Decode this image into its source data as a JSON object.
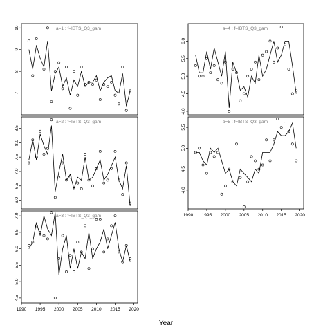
{
  "xlabel": "Year",
  "chart_data": [
    {
      "type": "scatter",
      "title": "a=1  :  f=IBTS_Q3_gam",
      "xlim": [
        1990,
        2021
      ],
      "ylim": [
        6.0,
        10.2
      ],
      "xticks": [
        1990,
        1995,
        2000,
        2005,
        2010,
        2015,
        2020
      ],
      "yticks": [
        7,
        8,
        9,
        10
      ],
      "observed": {
        "x": [
          1992,
          1993,
          1994,
          1995,
          1996,
          1997,
          1998,
          1999,
          2000,
          2001,
          2002,
          2003,
          2004,
          2005,
          2006,
          2007,
          2008,
          2009,
          2010,
          2011,
          2012,
          2013,
          2014,
          2015,
          2016,
          2017,
          2018,
          2019
        ],
        "y": [
          9.4,
          7.8,
          9.5,
          8.8,
          8.1,
          10.0,
          6.6,
          8.0,
          8.4,
          7.2,
          8.2,
          6.3,
          8.0,
          6.9,
          8.2,
          7.4,
          7.5,
          7.4,
          7.6,
          6.7,
          7.4,
          7.3,
          7.5,
          6.9,
          6.5,
          8.2,
          6.2,
          7.1
        ]
      },
      "fitted": {
        "x": [
          1992,
          1993,
          1994,
          1995,
          1996,
          1997,
          1998,
          1999,
          2000,
          2001,
          2002,
          2003,
          2004,
          2005,
          2006,
          2007,
          2008,
          2009,
          2010,
          2011,
          2012,
          2013,
          2014,
          2015,
          2016,
          2017,
          2018,
          2019
        ],
        "y": [
          9.0,
          8.1,
          9.2,
          8.6,
          8.2,
          9.4,
          7.1,
          7.9,
          8.2,
          7.3,
          7.7,
          6.9,
          7.6,
          7.3,
          8.0,
          7.3,
          7.5,
          7.5,
          7.8,
          7.1,
          7.5,
          7.7,
          7.8,
          7.1,
          7.0,
          7.9,
          6.4,
          7.1
        ]
      }
    },
    {
      "type": "scatter",
      "title": "a=2  :  f=IBTS_Q3_gam",
      "xlim": [
        1990,
        2021
      ],
      "ylim": [
        5.7,
        8.9
      ],
      "xticks": [
        1990,
        1995,
        2000,
        2005,
        2010,
        2015,
        2020
      ],
      "yticks": [
        6.0,
        6.5,
        7.0,
        7.5,
        8.0,
        8.5
      ],
      "observed": {
        "x": [
          1992,
          1993,
          1994,
          1995,
          1996,
          1997,
          1998,
          1999,
          2000,
          2001,
          2002,
          2003,
          2004,
          2005,
          2006,
          2007,
          2008,
          2009,
          2010,
          2011,
          2012,
          2013,
          2014,
          2015,
          2016,
          2017,
          2018,
          2019
        ],
        "y": [
          7.3,
          8.1,
          7.5,
          8.4,
          7.6,
          7.8,
          8.8,
          6.1,
          6.8,
          7.3,
          6.7,
          6.8,
          6.4,
          6.6,
          6.4,
          7.6,
          6.7,
          6.5,
          7.1,
          7.7,
          6.6,
          6.7,
          7.1,
          7.7,
          6.7,
          6.2,
          7.3,
          5.9
        ]
      },
      "fitted": {
        "x": [
          1992,
          1993,
          1994,
          1995,
          1996,
          1997,
          1998,
          1999,
          2000,
          2001,
          2002,
          2003,
          2004,
          2005,
          2006,
          2007,
          2008,
          2009,
          2010,
          2011,
          2012,
          2013,
          2014,
          2015,
          2016,
          2017,
          2018,
          2019
        ],
        "y": [
          7.4,
          8.1,
          7.4,
          8.3,
          7.9,
          7.6,
          8.6,
          6.3,
          7.0,
          7.6,
          6.7,
          6.9,
          6.4,
          6.8,
          6.7,
          7.5,
          6.7,
          6.8,
          7.1,
          7.4,
          6.7,
          6.9,
          7.2,
          7.5,
          6.7,
          6.4,
          7.2,
          5.8
        ]
      }
    },
    {
      "type": "scatter",
      "title": "a=3  :  f=IBTS_Q3_gam",
      "xlim": [
        1990,
        2021
      ],
      "ylim": [
        4.35,
        7.15
      ],
      "xticks": [
        1990,
        1995,
        2000,
        2005,
        2010,
        2015,
        2020
      ],
      "yticks": [
        4.5,
        5.0,
        5.5,
        6.0,
        6.5,
        7.0
      ],
      "observed": {
        "x": [
          1992,
          1993,
          1994,
          1995,
          1996,
          1997,
          1998,
          1999,
          2000,
          2001,
          2002,
          2003,
          2004,
          2005,
          2006,
          2007,
          2008,
          2009,
          2010,
          2011,
          2012,
          2013,
          2014,
          2015,
          2016,
          2017,
          2018,
          2019
        ],
        "y": [
          6.1,
          6.2,
          6.7,
          6.5,
          6.4,
          6.3,
          7.1,
          4.5,
          5.7,
          6.4,
          5.3,
          5.8,
          5.3,
          6.2,
          5.9,
          6.7,
          5.4,
          6.0,
          6.9,
          6.9,
          5.9,
          6.3,
          6.7,
          7.0,
          5.9,
          5.6,
          6.1,
          5.7
        ]
      },
      "fitted": {
        "x": [
          1992,
          1993,
          1994,
          1995,
          1996,
          1997,
          1998,
          1999,
          2000,
          2001,
          2002,
          2003,
          2004,
          2005,
          2006,
          2007,
          2008,
          2009,
          2010,
          2011,
          2012,
          2013,
          2014,
          2015,
          2016,
          2017,
          2018,
          2019
        ],
        "y": [
          6.0,
          6.2,
          6.8,
          6.4,
          7.0,
          6.6,
          6.4,
          7.1,
          5.2,
          6.0,
          6.4,
          5.4,
          6.0,
          5.4,
          5.9,
          5.7,
          6.5,
          5.7,
          6.0,
          6.2,
          6.6,
          6.0,
          6.4,
          6.8,
          6.0,
          5.6,
          6.1,
          5.6
        ]
      }
    },
    {
      "type": "scatter",
      "title": "a=4  :  f=IBTS_Q3_gam",
      "xlim": [
        1990,
        2021
      ],
      "ylim": [
        3.9,
        6.5
      ],
      "xticks": [
        1990,
        1995,
        2000,
        2005,
        2010,
        2015,
        2020
      ],
      "yticks": [
        4.0,
        4.5,
        5.0,
        5.5,
        6.0
      ],
      "observed": {
        "x": [
          1992,
          1993,
          1994,
          1995,
          1996,
          1997,
          1998,
          1999,
          2000,
          2001,
          2002,
          2003,
          2004,
          2005,
          2006,
          2007,
          2008,
          2009,
          2010,
          2011,
          2012,
          2013,
          2014,
          2015,
          2016,
          2017,
          2018,
          2019
        ],
        "y": [
          5.3,
          5.0,
          5.0,
          5.5,
          5.1,
          5.3,
          4.9,
          4.8,
          5.4,
          4.0,
          5.2,
          5.1,
          4.3,
          4.5,
          5.0,
          5.2,
          5.4,
          4.9,
          5.6,
          5.7,
          6.0,
          5.4,
          5.8,
          6.4,
          5.9,
          5.2,
          4.5,
          4.6
        ]
      },
      "fitted": {
        "x": [
          1992,
          1993,
          1994,
          1995,
          1996,
          1997,
          1998,
          1999,
          2000,
          2001,
          2002,
          2003,
          2004,
          2005,
          2006,
          2007,
          2008,
          2009,
          2010,
          2011,
          2012,
          2013,
          2014,
          2015,
          2016,
          2017,
          2018,
          2019
        ],
        "y": [
          5.6,
          5.1,
          5.1,
          5.7,
          5.2,
          5.8,
          5.4,
          5.0,
          5.7,
          4.1,
          5.4,
          5.1,
          4.6,
          4.7,
          4.4,
          5.0,
          4.8,
          5.6,
          5.0,
          5.2,
          5.6,
          6.0,
          5.4,
          5.6,
          6.0,
          6.0,
          5.3,
          4.5
        ]
      }
    },
    {
      "type": "scatter",
      "title": "a=5  :  f=IBTS_Q3_gam",
      "xlim": [
        1990,
        2021
      ],
      "ylim": [
        3.55,
        5.75
      ],
      "xticks": [
        1990,
        1995,
        2000,
        2005,
        2010,
        2015,
        2020
      ],
      "yticks": [
        4.0,
        4.5,
        5.0,
        5.5
      ],
      "observed": {
        "x": [
          1992,
          1993,
          1994,
          1995,
          1996,
          1997,
          1998,
          1999,
          2000,
          2001,
          2002,
          2003,
          2004,
          2005,
          2006,
          2007,
          2008,
          2009,
          2010,
          2011,
          2012,
          2013,
          2014,
          2015,
          2016,
          2017,
          2018,
          2019
        ],
        "y": [
          4.9,
          5.0,
          4.6,
          4.4,
          4.9,
          4.8,
          4.9,
          3.9,
          4.1,
          4.5,
          4.2,
          5.1,
          4.3,
          3.6,
          4.2,
          4.8,
          4.7,
          4.5,
          4.6,
          5.2,
          4.7,
          5.2,
          5.7,
          5.5,
          5.6,
          5.4,
          5.1,
          4.7
        ]
      },
      "fitted": {
        "x": [
          1992,
          1993,
          1994,
          1995,
          1996,
          1997,
          1998,
          1999,
          2000,
          2001,
          2002,
          2003,
          2004,
          2005,
          2006,
          2007,
          2008,
          2009,
          2010,
          2011,
          2012,
          2013,
          2014,
          2015,
          2016,
          2017,
          2018,
          2019
        ],
        "y": [
          4.9,
          4.9,
          4.7,
          4.6,
          5.0,
          4.9,
          5.0,
          4.7,
          4.4,
          4.5,
          4.2,
          4.1,
          4.5,
          4.4,
          4.3,
          4.2,
          4.5,
          4.4,
          4.9,
          4.9,
          4.9,
          5.1,
          5.4,
          5.3,
          5.3,
          5.4,
          5.6,
          5.0
        ]
      }
    }
  ]
}
